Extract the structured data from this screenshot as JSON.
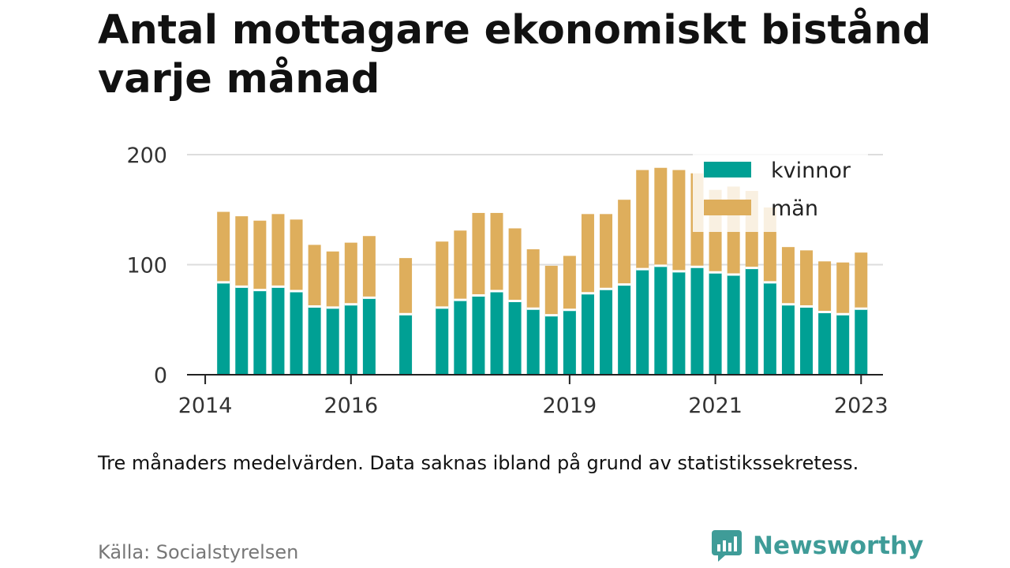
{
  "title": "Antal mottagare ekonomiskt bistånd varje månad",
  "note": "Tre månaders medelvärden. Data saknas ibland på grund av statistikssekretess.",
  "source": "Källa: Socialstyrelsen",
  "brand": {
    "name": "Newsworthy",
    "icon": "newsworthy-logo-icon",
    "color": "#3f9c98"
  },
  "chart_data": {
    "type": "bar",
    "stacked": true,
    "x": [
      2014.25,
      2014.5,
      2014.75,
      2015.0,
      2015.25,
      2015.5,
      2015.75,
      2016.0,
      2016.25,
      2016.75,
      2017.25,
      2017.5,
      2017.75,
      2018.0,
      2018.25,
      2018.5,
      2018.75,
      2019.0,
      2019.25,
      2019.5,
      2019.75,
      2020.0,
      2020.25,
      2020.5,
      2020.75,
      2021.0,
      2021.25,
      2021.5,
      2021.75,
      2022.0,
      2022.25,
      2022.5,
      2022.75,
      2023.0
    ],
    "series": [
      {
        "name": "kvinnor",
        "color": "#00a094",
        "values": [
          84,
          80,
          77,
          80,
          76,
          62,
          61,
          64,
          70,
          55,
          61,
          68,
          72,
          76,
          67,
          60,
          54,
          59,
          74,
          78,
          82,
          96,
          99,
          94,
          98,
          93,
          91,
          97,
          84,
          64,
          62,
          57,
          55,
          60
        ]
      },
      {
        "name": "män",
        "color": "#deae5c",
        "values": [
          64,
          64,
          63,
          66,
          65,
          56,
          51,
          56,
          56,
          51,
          60,
          63,
          75,
          71,
          66,
          54,
          45,
          49,
          72,
          68,
          77,
          90,
          89,
          92,
          85,
          75,
          80,
          70,
          68,
          52,
          51,
          46,
          47,
          51
        ]
      }
    ],
    "xticks": [
      {
        "value": 2014,
        "label": "2014"
      },
      {
        "value": 2016,
        "label": "2016"
      },
      {
        "value": 2019,
        "label": "2019"
      },
      {
        "value": 2021,
        "label": "2021"
      },
      {
        "value": 2023,
        "label": "2023"
      }
    ],
    "yticks": [
      {
        "value": 0,
        "label": "0"
      },
      {
        "value": 100,
        "label": "100"
      },
      {
        "value": 200,
        "label": "200"
      }
    ],
    "xlim": [
      2013.75,
      2023.3
    ],
    "ylim": [
      0,
      200
    ],
    "grid": true,
    "legend_position": "top-right"
  }
}
